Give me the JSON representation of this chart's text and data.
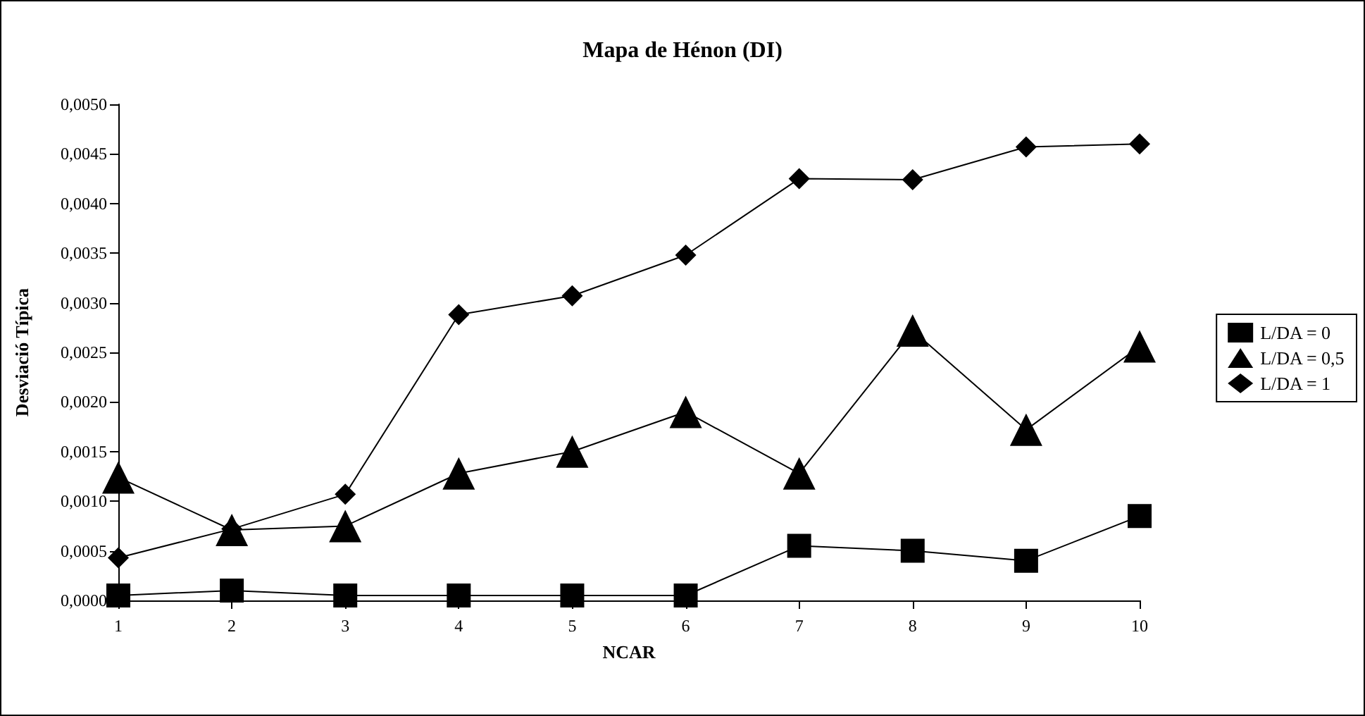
{
  "chart_data": {
    "type": "line",
    "title": "Mapa de Hénon (DI)",
    "xlabel": "NCAR",
    "ylabel": "Desviació Típica",
    "categories": [
      "1",
      "2",
      "3",
      "4",
      "5",
      "6",
      "7",
      "8",
      "9",
      "10"
    ],
    "series": [
      {
        "name": "L/DA = 0",
        "color": "#000000",
        "marker": "square",
        "values": [
          5e-05,
          0.0001,
          5e-05,
          5e-05,
          5e-05,
          5e-05,
          0.00055,
          0.0005,
          0.0004,
          0.00085
        ]
      },
      {
        "name": "L/DA = 0,5",
        "color": "#000000",
        "marker": "triangle",
        "values": [
          0.00124,
          0.00071,
          0.00075,
          0.00128,
          0.0015,
          0.0019,
          0.00128,
          0.00272,
          0.00172,
          0.00256
        ]
      },
      {
        "name": "L/DA = 1",
        "color": "#000000",
        "marker": "diamond",
        "values": [
          0.00043,
          0.00072,
          0.00107,
          0.00288,
          0.00307,
          0.00348,
          0.00425,
          0.00424,
          0.00457,
          0.0046
        ]
      }
    ],
    "ylim": [
      0,
      0.005
    ],
    "yticks": [
      {
        "value": 0,
        "label": "0,0000"
      },
      {
        "value": 0.0005,
        "label": "0,0005"
      },
      {
        "value": 0.001,
        "label": "0,0010"
      },
      {
        "value": 0.0015,
        "label": "0,0015"
      },
      {
        "value": 0.002,
        "label": "0,0020"
      },
      {
        "value": 0.0025,
        "label": "0,0025"
      },
      {
        "value": 0.003,
        "label": "0,0030"
      },
      {
        "value": 0.0035,
        "label": "0,0035"
      },
      {
        "value": 0.004,
        "label": "0,0040"
      },
      {
        "value": 0.0045,
        "label": "0,0045"
      },
      {
        "value": 0.005,
        "label": "0,0050"
      }
    ],
    "grid": false,
    "legend": "right",
    "line_style": "solid"
  }
}
